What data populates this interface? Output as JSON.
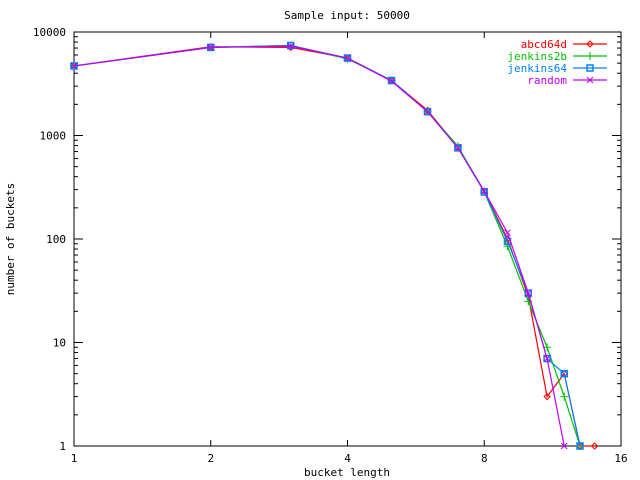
{
  "chart_data": {
    "type": "line",
    "title": "Sample input: 50000",
    "xlabel": "bucket length",
    "ylabel": "number of buckets",
    "xscale": "log2",
    "yscale": "log10",
    "xlim": [
      1,
      16
    ],
    "ylim": [
      1,
      10000
    ],
    "xticks": [
      "1",
      "2",
      "4",
      "8",
      "16"
    ],
    "yticks": [
      "1",
      "10",
      "100",
      "1000",
      "10000"
    ],
    "legend_position": "top-right",
    "series": [
      {
        "name": "abcd64d",
        "color": "#ff0000",
        "marker": "diamond",
        "x": [
          1,
          2,
          3,
          4,
          5,
          6,
          7,
          8,
          9,
          10,
          11,
          12,
          13,
          14
        ],
        "y": [
          4700,
          7200,
          7100,
          5600,
          3400,
          1750,
          770,
          290,
          100,
          28,
          3,
          5,
          1,
          1
        ]
      },
      {
        "name": "jenkins2b",
        "color": "#00c000",
        "marker": "plus",
        "x": [
          1,
          2,
          3,
          4,
          5,
          6,
          7,
          8,
          9,
          10,
          11,
          12,
          13
        ],
        "y": [
          4700,
          7100,
          7400,
          5500,
          3400,
          1700,
          790,
          285,
          85,
          25,
          9,
          3,
          1
        ]
      },
      {
        "name": "jenkins64",
        "color": "#0080ff",
        "marker": "square",
        "x": [
          1,
          2,
          3,
          4,
          5,
          6,
          7,
          8,
          9,
          10,
          11,
          12,
          13
        ],
        "y": [
          4700,
          7100,
          7400,
          5600,
          3400,
          1700,
          760,
          285,
          95,
          30,
          7,
          5,
          1
        ]
      },
      {
        "name": "random",
        "color": "#c000ff",
        "marker": "x",
        "x": [
          1,
          2,
          3,
          4,
          5,
          6,
          7,
          8,
          9,
          10,
          11,
          12
        ],
        "y": [
          4700,
          7100,
          7300,
          5600,
          3350,
          1700,
          760,
          290,
          115,
          30,
          7,
          1
        ]
      }
    ]
  }
}
